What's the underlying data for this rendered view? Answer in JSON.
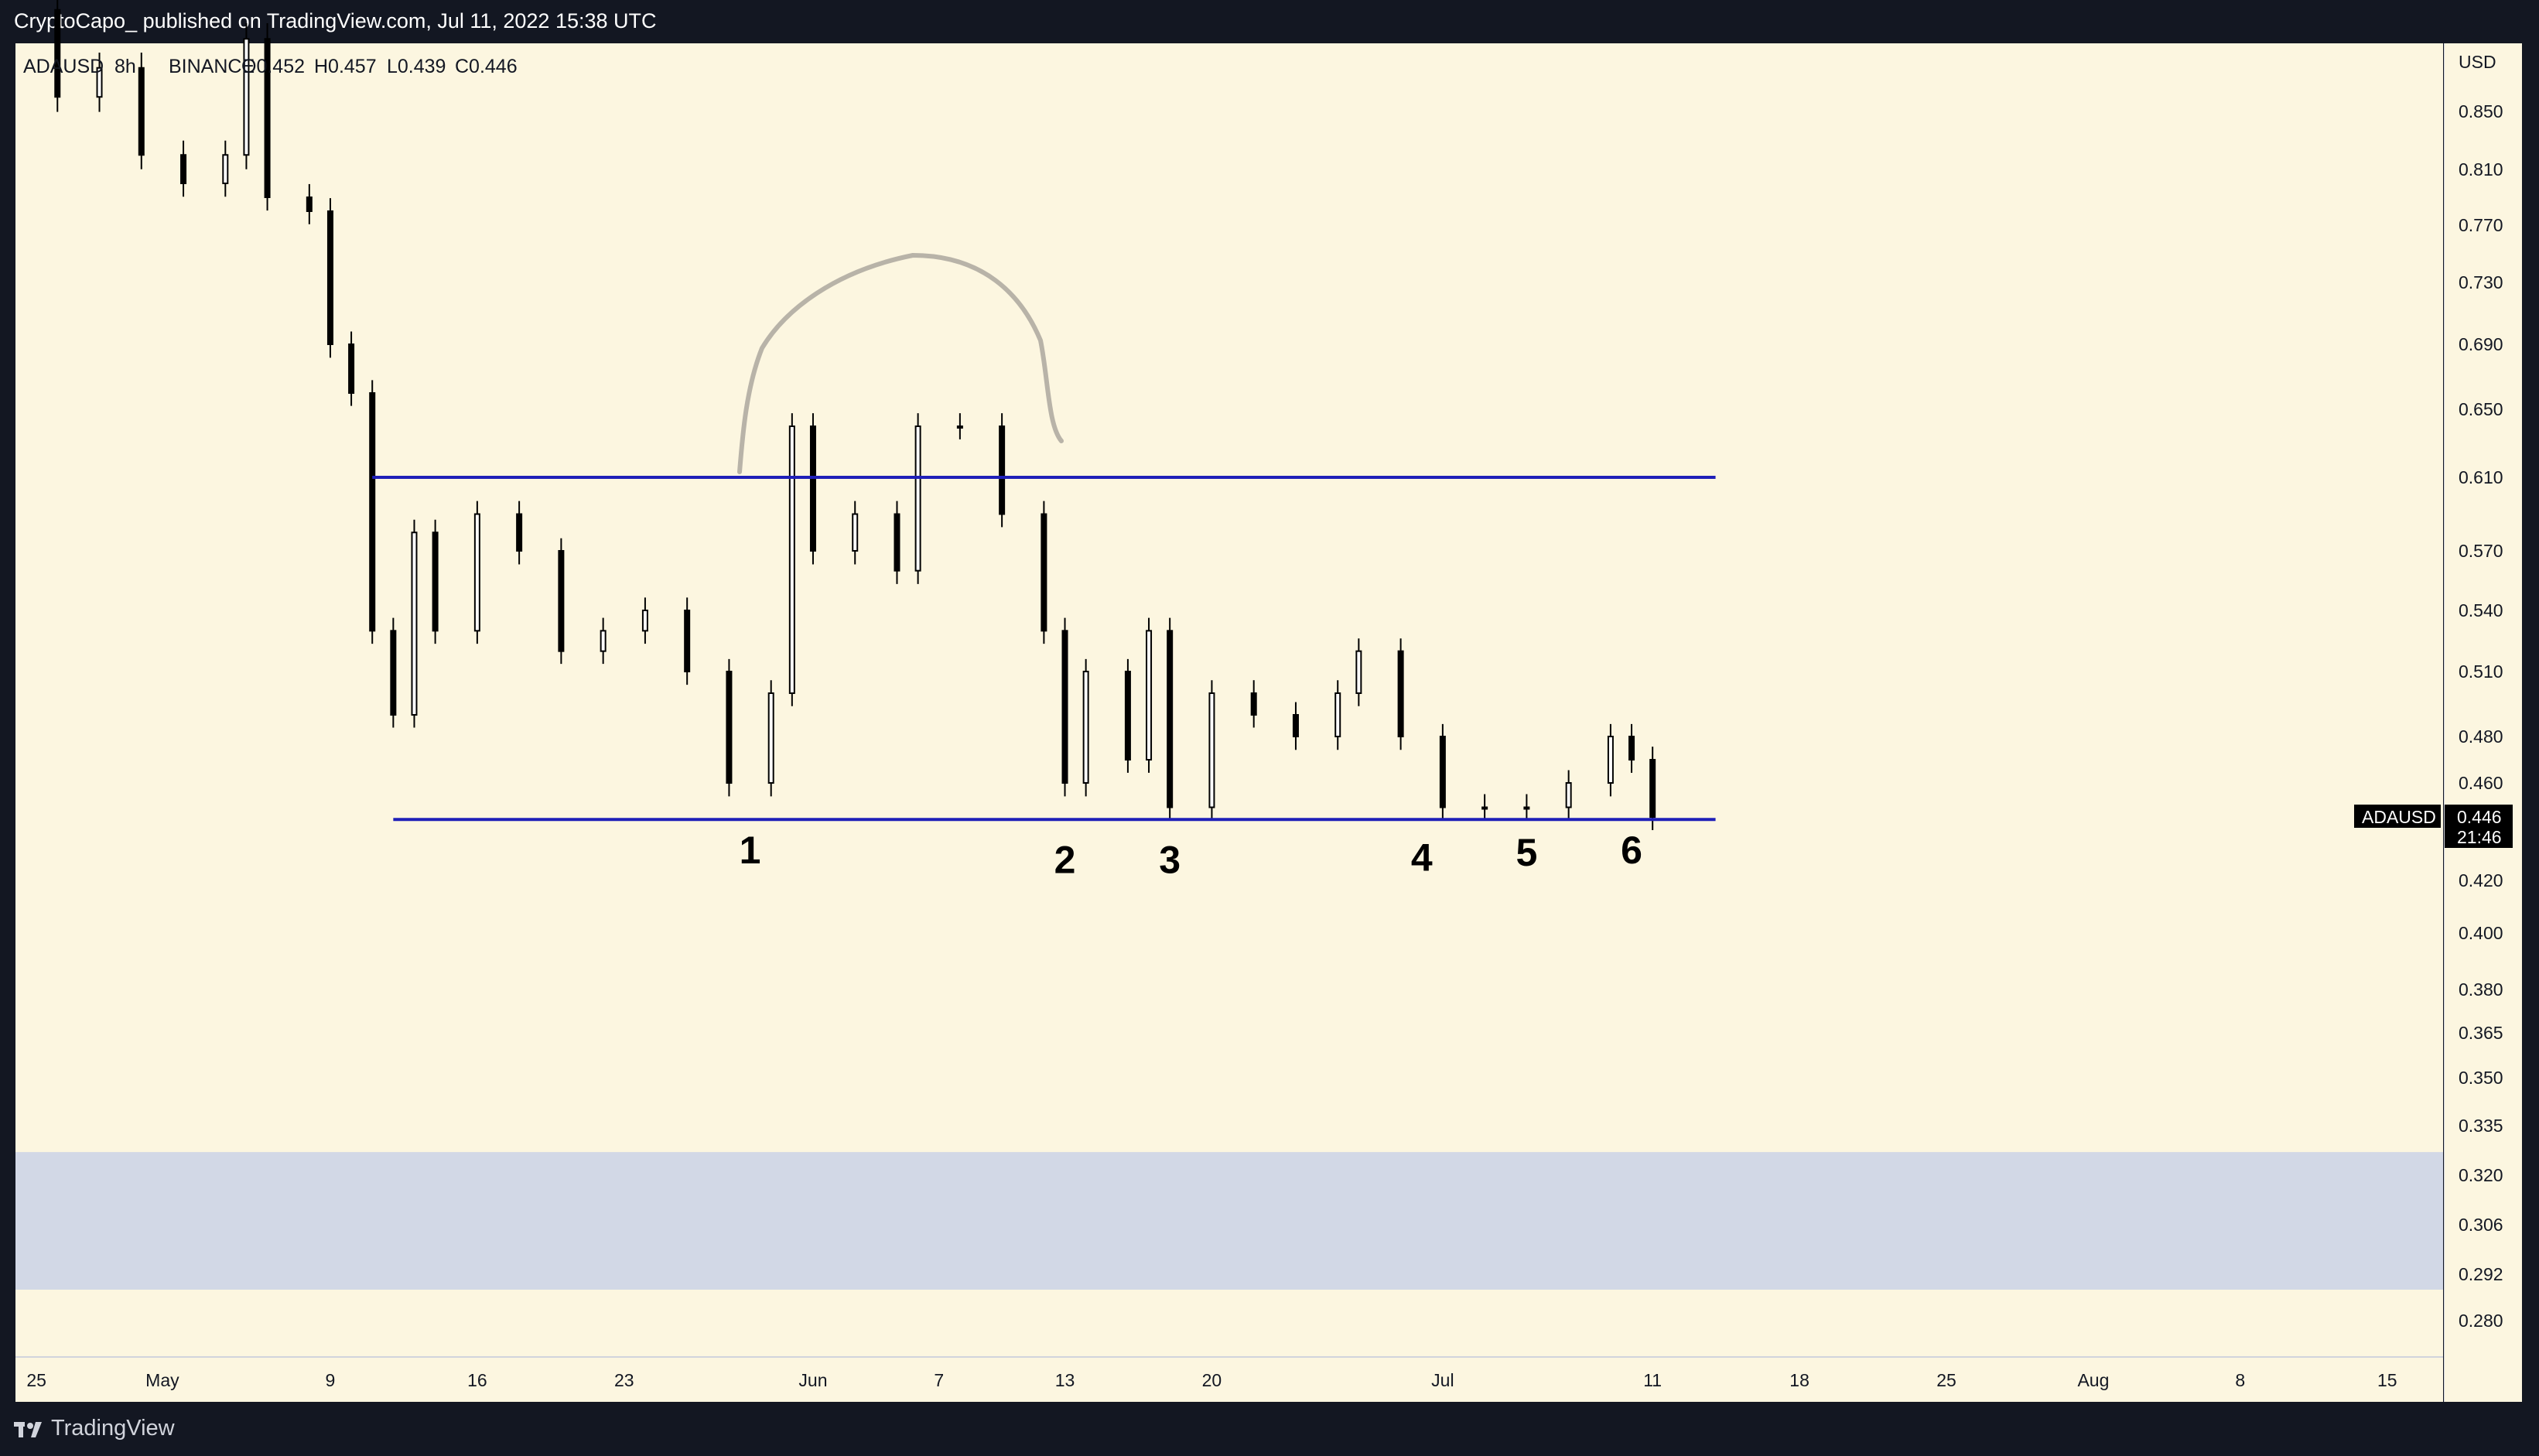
{
  "header": {
    "published": "CryptoCapo_ published on TradingView.com, Jul 11, 2022 15:38 UTC"
  },
  "footer": {
    "brand": "TradingView"
  },
  "legend": {
    "symbol": "ADAUSD",
    "interval": "8h",
    "exchange": "BINANCE",
    "open": "O0.452",
    "high": "H0.457",
    "low": "L0.439",
    "close": "C0.446"
  },
  "price_axis": {
    "currency": "USD"
  },
  "last_price": {
    "symbol": "ADAUSD",
    "value": "0.446",
    "countdown": "21:46"
  },
  "colors": {
    "background": "#fcf6e0",
    "up_candle": "#ffffff",
    "down_candle": "#000000",
    "level_line": "#1f1fb8",
    "demand_zone": "#d2d8e6",
    "arc": "#b8b3a8"
  },
  "icons": {
    "logo": "tradingview-logo-icon"
  },
  "chart_data": {
    "type": "candlestick",
    "symbol": "ADAUSD",
    "interval": "8h",
    "exchange": "BINANCE",
    "y_ticks": [
      0.85,
      0.81,
      0.77,
      0.73,
      0.69,
      0.65,
      0.61,
      0.57,
      0.54,
      0.51,
      0.48,
      0.46,
      0.42,
      0.4,
      0.38,
      0.365,
      0.35,
      0.335,
      0.32,
      0.306,
      0.292,
      0.28
    ],
    "y_tick_labels": [
      "0.850",
      "0.810",
      "0.770",
      "0.730",
      "0.690",
      "0.650",
      "0.610",
      "0.570",
      "0.540",
      "0.510",
      "0.480",
      "0.460",
      "0.420",
      "0.400",
      "0.380",
      "0.365",
      "0.350",
      "0.335",
      "0.320",
      "0.306",
      "0.292",
      "0.280"
    ],
    "x_ticks": [
      {
        "label": "25",
        "date": "2022-04-25"
      },
      {
        "label": "May",
        "date": "2022-05-01"
      },
      {
        "label": "9",
        "date": "2022-05-09"
      },
      {
        "label": "16",
        "date": "2022-05-16"
      },
      {
        "label": "23",
        "date": "2022-05-23"
      },
      {
        "label": "Jun",
        "date": "2022-06-01"
      },
      {
        "label": "7",
        "date": "2022-06-07"
      },
      {
        "label": "13",
        "date": "2022-06-13"
      },
      {
        "label": "20",
        "date": "2022-06-20"
      },
      {
        "label": "Jul",
        "date": "2022-07-01"
      },
      {
        "label": "11",
        "date": "2022-07-11"
      },
      {
        "label": "18",
        "date": "2022-07-18"
      },
      {
        "label": "25",
        "date": "2022-07-25"
      },
      {
        "label": "Aug",
        "date": "2022-08-01"
      },
      {
        "label": "8",
        "date": "2022-08-08"
      },
      {
        "label": "15",
        "date": "2022-08-15"
      }
    ],
    "date_range": [
      "2022-04-24",
      "2022-08-17"
    ],
    "candle_closes": [
      {
        "date": "2022-04-24",
        "close": 0.92
      },
      {
        "date": "2022-04-26",
        "close": 0.86
      },
      {
        "date": "2022-04-28",
        "close": 0.88
      },
      {
        "date": "2022-04-30",
        "close": 0.82
      },
      {
        "date": "2022-05-02",
        "close": 0.8
      },
      {
        "date": "2022-05-04",
        "close": 0.82
      },
      {
        "date": "2022-05-05",
        "close": 0.9
      },
      {
        "date": "2022-05-06",
        "close": 0.79
      },
      {
        "date": "2022-05-08",
        "close": 0.78
      },
      {
        "date": "2022-05-09",
        "close": 0.69
      },
      {
        "date": "2022-05-10",
        "close": 0.66
      },
      {
        "date": "2022-05-11",
        "close": 0.53
      },
      {
        "date": "2022-05-12",
        "close": 0.49
      },
      {
        "date": "2022-05-13",
        "close": 0.58
      },
      {
        "date": "2022-05-14",
        "close": 0.53
      },
      {
        "date": "2022-05-16",
        "close": 0.59
      },
      {
        "date": "2022-05-18",
        "close": 0.57
      },
      {
        "date": "2022-05-20",
        "close": 0.52
      },
      {
        "date": "2022-05-22",
        "close": 0.53
      },
      {
        "date": "2022-05-24",
        "close": 0.54
      },
      {
        "date": "2022-05-26",
        "close": 0.51
      },
      {
        "date": "2022-05-28",
        "close": 0.46
      },
      {
        "date": "2022-05-30",
        "close": 0.5
      },
      {
        "date": "2022-05-31",
        "close": 0.64
      },
      {
        "date": "2022-06-01",
        "close": 0.57
      },
      {
        "date": "2022-06-03",
        "close": 0.59
      },
      {
        "date": "2022-06-05",
        "close": 0.56
      },
      {
        "date": "2022-06-06",
        "close": 0.64
      },
      {
        "date": "2022-06-08",
        "close": 0.64
      },
      {
        "date": "2022-06-10",
        "close": 0.59
      },
      {
        "date": "2022-06-12",
        "close": 0.53
      },
      {
        "date": "2022-06-13",
        "close": 0.46
      },
      {
        "date": "2022-06-14",
        "close": 0.51
      },
      {
        "date": "2022-06-16",
        "close": 0.47
      },
      {
        "date": "2022-06-17",
        "close": 0.53
      },
      {
        "date": "2022-06-18",
        "close": 0.45
      },
      {
        "date": "2022-06-20",
        "close": 0.5
      },
      {
        "date": "2022-06-22",
        "close": 0.49
      },
      {
        "date": "2022-06-24",
        "close": 0.48
      },
      {
        "date": "2022-06-26",
        "close": 0.5
      },
      {
        "date": "2022-06-27",
        "close": 0.52
      },
      {
        "date": "2022-06-29",
        "close": 0.48
      },
      {
        "date": "2022-07-01",
        "close": 0.45
      },
      {
        "date": "2022-07-03",
        "close": 0.45
      },
      {
        "date": "2022-07-05",
        "close": 0.45
      },
      {
        "date": "2022-07-07",
        "close": 0.46
      },
      {
        "date": "2022-07-09",
        "close": 0.48
      },
      {
        "date": "2022-07-10",
        "close": 0.47
      },
      {
        "date": "2022-07-11",
        "close": 0.446
      }
    ],
    "horizontal_lines": [
      {
        "price": 0.61,
        "from": "2022-05-11",
        "to": "2022-07-14"
      },
      {
        "price": 0.445,
        "from": "2022-05-12",
        "to": "2022-07-14"
      }
    ],
    "zone": {
      "from_price": 0.288,
      "to_price": 0.327
    },
    "annotations": [
      {
        "text": "1",
        "date": "2022-05-29",
        "price": 0.427
      },
      {
        "text": "2",
        "date": "2022-06-13",
        "price": 0.423
      },
      {
        "text": "3",
        "date": "2022-06-18",
        "price": 0.423
      },
      {
        "text": "4",
        "date": "2022-06-30",
        "price": 0.424
      },
      {
        "text": "5",
        "date": "2022-07-05",
        "price": 0.426
      },
      {
        "text": "6",
        "date": "2022-07-10",
        "price": 0.427
      }
    ]
  }
}
